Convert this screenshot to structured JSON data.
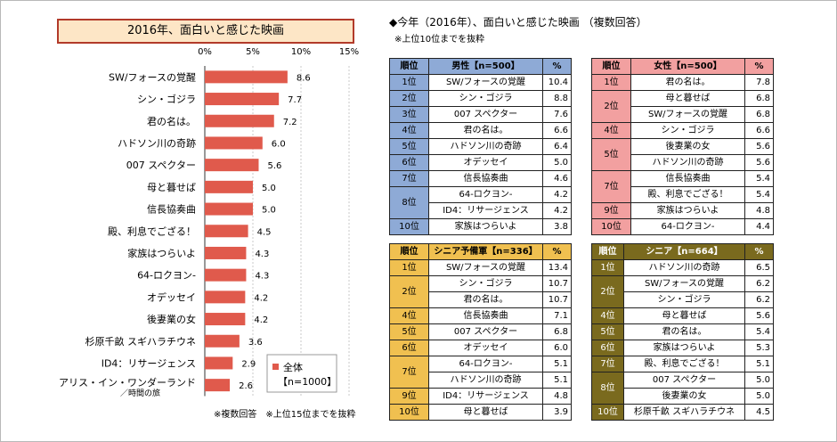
{
  "chart_data": {
    "type": "bar",
    "orientation": "horizontal",
    "title": "2016年、面白いと感じた映画",
    "categories": [
      "SW/フォースの覚醒",
      "シン・ゴジラ",
      "君の名は。",
      "ハドソン川の奇跡",
      "007 スペクター",
      "母と暮せば",
      "信長協奏曲",
      "殿、利息でござる！",
      "家族はつらいよ",
      "64-ロクヨン-",
      "オデッセイ",
      "後妻業の女",
      "杉原千畝 スギハラチウネ",
      "ID4：リサージェンス",
      "アリス・イン・ワンダーランド"
    ],
    "category_sublabels": {
      "14": "／時間の旅"
    },
    "series": [
      {
        "name": "全体",
        "values": [
          8.6,
          7.7,
          7.2,
          6.0,
          5.6,
          5.0,
          5.0,
          4.5,
          4.3,
          4.3,
          4.2,
          4.2,
          3.6,
          2.9,
          2.6
        ]
      }
    ],
    "value_labels": [
      "8.6",
      "7.7",
      "7.2",
      "6.0",
      "5.6",
      "5.0",
      "5.0",
      "4.5",
      "4.3",
      "4.3",
      "4.2",
      "4.2",
      "3.6",
      "2.9",
      "2.6"
    ],
    "xlim": [
      0,
      15
    ],
    "xticks": [
      "0%",
      "5%",
      "10%",
      "15%"
    ],
    "legend": {
      "name": "全体",
      "n": "【n=1000】",
      "placement": "bottom-right"
    },
    "note": "※複数回答　※上位15位までを抜粋",
    "grid": true,
    "bar_color": "#e05a4c"
  },
  "right_panel": {
    "title": "◆今年（2016年）、面白いと感じた映画 （複数回答）",
    "note": "※上位10位までを抜粋"
  },
  "tables": [
    {
      "id": "male",
      "header": [
        "順位",
        "男性【n=500】",
        "%"
      ],
      "header_color": "#8eaad6",
      "rank_color": "#8eaad6",
      "rows": [
        [
          "1位",
          "SW/フォースの覚醒",
          "10.4"
        ],
        [
          "2位",
          "シン・ゴジラ",
          "8.8"
        ],
        [
          "3位",
          "007 スペクター",
          "7.6"
        ],
        [
          "4位",
          "君の名は。",
          "6.6"
        ],
        [
          "5位",
          "ハドソン川の奇跡",
          "6.4"
        ],
        [
          "6位",
          "オデッセイ",
          "5.0"
        ],
        [
          "7位",
          "信長協奏曲",
          "4.6"
        ],
        [
          "8位",
          "64-ロクヨン-",
          "4.2"
        ],
        [
          "",
          "ID4：リサージェンス",
          "4.2"
        ],
        [
          "10位",
          "家族はつらいよ",
          "3.8"
        ]
      ],
      "spans": {
        "7": 2
      }
    },
    {
      "id": "female",
      "header": [
        "順位",
        "女性【n=500】",
        "%"
      ],
      "header_color": "#f2a0a0",
      "rank_color": "#f2a0a0",
      "rows": [
        [
          "1位",
          "君の名は。",
          "7.8"
        ],
        [
          "2位",
          "母と暮せば",
          "6.8"
        ],
        [
          "",
          "SW/フォースの覚醒",
          "6.8"
        ],
        [
          "4位",
          "シン・ゴジラ",
          "6.6"
        ],
        [
          "5位",
          "後妻業の女",
          "5.6"
        ],
        [
          "",
          "ハドソン川の奇跡",
          "5.6"
        ],
        [
          "7位",
          "信長協奏曲",
          "5.4"
        ],
        [
          "",
          "殿、利息でござる！",
          "5.4"
        ],
        [
          "9位",
          "家族はつらいよ",
          "4.8"
        ],
        [
          "10位",
          "64-ロクヨン-",
          "4.4"
        ]
      ],
      "spans": {
        "1": 2,
        "4": 2,
        "6": 2
      }
    },
    {
      "id": "senior_pre",
      "header": [
        "順位",
        "シニア予備軍【n=336】",
        "%"
      ],
      "header_color": "#f0c050",
      "rank_color": "#f0c050",
      "rows": [
        [
          "1位",
          "SW/フォースの覚醒",
          "13.4"
        ],
        [
          "2位",
          "シン・ゴジラ",
          "10.7"
        ],
        [
          "",
          "君の名は。",
          "10.7"
        ],
        [
          "4位",
          "信長協奏曲",
          "7.1"
        ],
        [
          "5位",
          "007 スペクター",
          "6.8"
        ],
        [
          "6位",
          "オデッセイ",
          "6.0"
        ],
        [
          "7位",
          "64-ロクヨン-",
          "5.1"
        ],
        [
          "",
          "ハドソン川の奇跡",
          "5.1"
        ],
        [
          "9位",
          "ID4：リサージェンス",
          "4.8"
        ],
        [
          "10位",
          "母と暮せば",
          "3.9"
        ]
      ],
      "spans": {
        "1": 2,
        "6": 2
      }
    },
    {
      "id": "senior",
      "header": [
        "順位",
        "シニア【n=664】",
        "%"
      ],
      "header_color": "#7a6a1e",
      "rank_color": "#7a6a1e",
      "text_light": true,
      "rows": [
        [
          "1位",
          "ハドソン川の奇跡",
          "6.5"
        ],
        [
          "2位",
          "SW/フォースの覚醒",
          "6.2"
        ],
        [
          "",
          "シン・ゴジラ",
          "6.2"
        ],
        [
          "4位",
          "母と暮せば",
          "5.6"
        ],
        [
          "5位",
          "君の名は。",
          "5.4"
        ],
        [
          "6位",
          "家族はつらいよ",
          "5.3"
        ],
        [
          "7位",
          "殿、利息でござる！",
          "5.1"
        ],
        [
          "8位",
          "007 スペクター",
          "5.0"
        ],
        [
          "",
          "後妻業の女",
          "5.0"
        ],
        [
          "10位",
          "杉原千畝 スギハラチウネ",
          "4.5"
        ]
      ],
      "spans": {
        "1": 2,
        "7": 2
      }
    }
  ]
}
